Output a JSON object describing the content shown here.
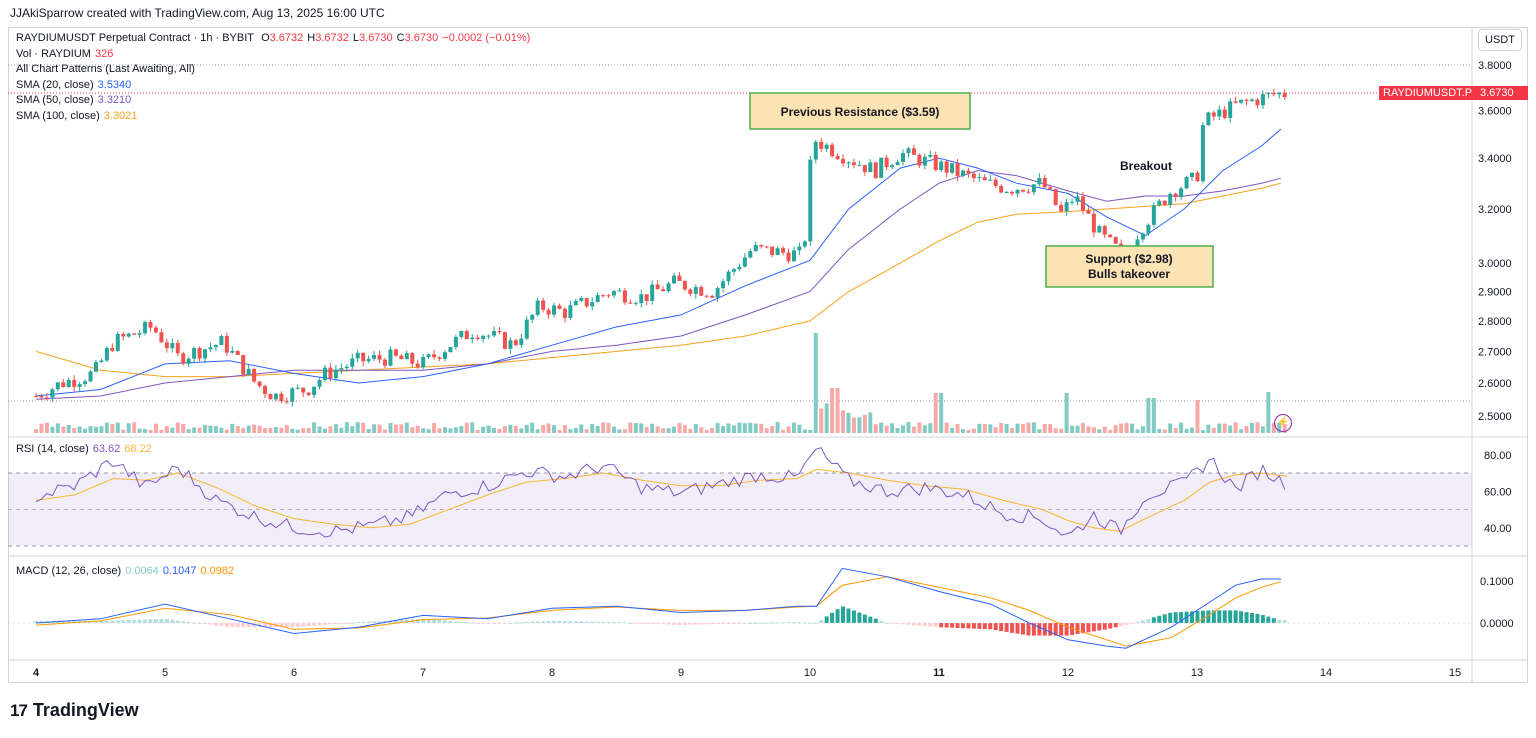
{
  "header": {
    "credit": "JJAkiSparrow created with TradingView.com, Aug 13, 2025 16:00 UTC"
  },
  "legend": {
    "symbol": "RAYDIUMUSDT Perpetual Contract · 1h · BYBIT",
    "ohlc": {
      "o_label": "O",
      "o": "3.6732",
      "h_label": "H",
      "h": "3.6732",
      "l_label": "L",
      "l": "3.6730",
      "c_label": "C",
      "c": "3.6730",
      "change": "−0.0002 (−0.01%)"
    },
    "vol_label": "Vol · RAYDIUM",
    "vol_value": "326",
    "patterns": "All Chart Patterns (Last Awaiting, All)",
    "sma20_label": "SMA (20, close)",
    "sma20_value": "3.5340",
    "sma50_label": "SMA (50, close)",
    "sma50_value": "3.3210",
    "sma100_label": "SMA (100, close)",
    "sma100_value": "3.3021",
    "rsi_label": "RSI (14, close)",
    "rsi_value": "63.62",
    "rsi_ma_value": "68.22",
    "macd_label": "MACD (12, 26, close)",
    "macd_hist": "0.0064",
    "macd_line": "0.1047",
    "macd_signal": "0.0982"
  },
  "currency": "USDT",
  "price_tag": {
    "symbol": "RAYDIUMUSDT.P",
    "value": "3.6730"
  },
  "annotations": {
    "resistance": "Previous Resistance ($3.59)",
    "breakout": "Breakout",
    "support_line1": "Support ($2.98)",
    "support_line2": "Bulls takeover"
  },
  "colors": {
    "up": "#26a69a",
    "down": "#ef5350",
    "sma20": "#2962ff",
    "sma50": "#7e57c2",
    "sma100": "#f7a21b",
    "rsi": "#7e57c2",
    "rsi_ma": "#f7b731",
    "macd": "#2962ff",
    "signal": "#ff9800",
    "annot_fill": "#fce3b4",
    "annot_border": "#4caf50"
  },
  "logo": {
    "text": "TradingView"
  },
  "chart_data": {
    "type": "candlestick",
    "interval": "1h",
    "price_axis": {
      "scale": "log",
      "ticks": [
        "3.8000",
        "3.6000",
        "3.4000",
        "3.2000",
        "3.0000",
        "2.9000",
        "2.8000",
        "2.7000",
        "2.6000",
        "2.5000"
      ]
    },
    "x_ticks": [
      "4",
      "5",
      "6",
      "7",
      "8",
      "9",
      "10",
      "11",
      "12",
      "13",
      "14",
      "15"
    ],
    "price_path_day": [
      4.0,
      4.2,
      4.45,
      4.6,
      4.9,
      5.1,
      5.45,
      5.7,
      5.85,
      6.1,
      6.25,
      6.5,
      6.75,
      7.0,
      7.2,
      7.4,
      7.7,
      7.9,
      8.1,
      8.45,
      8.7,
      8.95,
      9.25,
      9.55,
      9.95,
      10.02,
      10.3,
      10.5,
      10.7,
      11.0,
      11.35,
      11.55,
      11.8,
      11.95,
      12.05,
      12.25,
      12.45,
      12.55,
      12.8,
      13.0,
      13.05,
      13.3,
      13.6,
      13.7
    ],
    "price_path_close": [
      2.56,
      2.6,
      2.63,
      2.73,
      2.78,
      2.68,
      2.73,
      2.6,
      2.56,
      2.58,
      2.63,
      2.67,
      2.68,
      2.66,
      2.72,
      2.77,
      2.72,
      2.85,
      2.83,
      2.9,
      2.88,
      2.93,
      2.9,
      3.05,
      3.03,
      3.48,
      3.4,
      3.35,
      3.42,
      3.37,
      3.3,
      3.28,
      3.3,
      3.18,
      3.25,
      3.1,
      3.02,
      3.12,
      3.27,
      3.32,
      3.55,
      3.62,
      3.67,
      3.673
    ],
    "sma20_path_day": [
      4.0,
      4.5,
      5.0,
      5.5,
      6.0,
      6.5,
      7.0,
      7.5,
      8.0,
      8.5,
      9.0,
      9.5,
      10.0,
      10.3,
      10.7,
      11.0,
      11.3,
      11.6,
      12.0,
      12.3,
      12.6,
      12.9,
      13.2,
      13.5,
      13.65
    ],
    "sma20_path": [
      2.56,
      2.58,
      2.66,
      2.67,
      2.63,
      2.6,
      2.62,
      2.66,
      2.72,
      2.78,
      2.82,
      2.92,
      3.01,
      3.2,
      3.36,
      3.4,
      3.36,
      3.3,
      3.26,
      3.17,
      3.1,
      3.2,
      3.35,
      3.45,
      3.52
    ],
    "sma50_path": [
      2.55,
      2.56,
      2.6,
      2.62,
      2.64,
      2.64,
      2.64,
      2.66,
      2.7,
      2.72,
      2.75,
      2.82,
      2.9,
      3.05,
      3.2,
      3.3,
      3.35,
      3.33,
      3.27,
      3.23,
      3.25,
      3.25,
      3.27,
      3.3,
      3.32
    ],
    "sma100_path": [
      2.7,
      2.64,
      2.62,
      2.62,
      2.63,
      2.64,
      2.65,
      2.66,
      2.68,
      2.7,
      2.72,
      2.75,
      2.8,
      2.9,
      3.0,
      3.08,
      3.15,
      3.18,
      3.19,
      3.2,
      3.21,
      3.22,
      3.25,
      3.28,
      3.3
    ],
    "volume_spikes": [
      {
        "day": 10.05,
        "rel": 1.0
      },
      {
        "day": 10.2,
        "rel": 0.45
      },
      {
        "day": 11.0,
        "rel": 0.4
      },
      {
        "day": 12.0,
        "rel": 0.4
      },
      {
        "day": 12.65,
        "rel": 0.35
      },
      {
        "day": 13.0,
        "rel": 0.33
      },
      {
        "day": 13.55,
        "rel": 0.41
      }
    ],
    "rsi": {
      "ticks": [
        "80.00",
        "60.00",
        "40.00"
      ],
      "band": [
        30,
        70
      ],
      "last": 63.62,
      "ma_last": 68.22,
      "path_day": [
        4.0,
        4.3,
        4.6,
        4.85,
        5.1,
        5.4,
        5.7,
        6.0,
        6.3,
        6.6,
        6.9,
        7.2,
        7.5,
        7.8,
        8.1,
        8.4,
        8.7,
        9.0,
        9.3,
        9.6,
        9.9,
        10.05,
        10.3,
        10.6,
        10.9,
        11.2,
        11.5,
        11.8,
        12.0,
        12.2,
        12.4,
        12.6,
        12.9,
        13.1,
        13.3,
        13.5,
        13.7
      ],
      "path": [
        57,
        63,
        77,
        62,
        73,
        55,
        46,
        40,
        38,
        41,
        46,
        59,
        63,
        71,
        68,
        74,
        62,
        59,
        64,
        69,
        67,
        83,
        66,
        60,
        62,
        58,
        48,
        45,
        35,
        47,
        38,
        58,
        64,
        78,
        61,
        72,
        63.6
      ],
      "ma_path": [
        55,
        58,
        67,
        66,
        70,
        62,
        52,
        45,
        42,
        40,
        42,
        50,
        58,
        65,
        67,
        70,
        66,
        63,
        63,
        66,
        67,
        72,
        70,
        66,
        63,
        61,
        55,
        50,
        44,
        40,
        38,
        45,
        55,
        65,
        69,
        70,
        68.2
      ]
    },
    "macd": {
      "ticks": [
        "0.1000",
        "0.0000"
      ],
      "last_line": 0.1047,
      "last_signal": 0.0982,
      "path_day": [
        4.0,
        4.5,
        5.0,
        5.5,
        6.0,
        6.5,
        7.0,
        7.5,
        8.0,
        8.5,
        9.0,
        9.5,
        9.9,
        10.05,
        10.25,
        10.6,
        11.0,
        11.4,
        11.7,
        12.0,
        12.3,
        12.45,
        12.8,
        13.1,
        13.3,
        13.5,
        13.65
      ],
      "line": [
        0.0,
        0.01,
        0.045,
        0.01,
        -0.025,
        -0.01,
        0.018,
        0.01,
        0.035,
        0.04,
        0.025,
        0.03,
        0.04,
        0.04,
        0.13,
        0.11,
        0.075,
        0.045,
        0.0,
        -0.04,
        -0.055,
        -0.06,
        -0.01,
        0.05,
        0.09,
        0.105,
        0.1047
      ],
      "signal": [
        -0.005,
        0.005,
        0.035,
        0.02,
        -0.015,
        -0.012,
        0.008,
        0.012,
        0.03,
        0.038,
        0.03,
        0.03,
        0.038,
        0.04,
        0.09,
        0.11,
        0.085,
        0.06,
        0.03,
        -0.01,
        -0.04,
        -0.055,
        -0.035,
        0.02,
        0.06,
        0.085,
        0.0982
      ]
    }
  }
}
